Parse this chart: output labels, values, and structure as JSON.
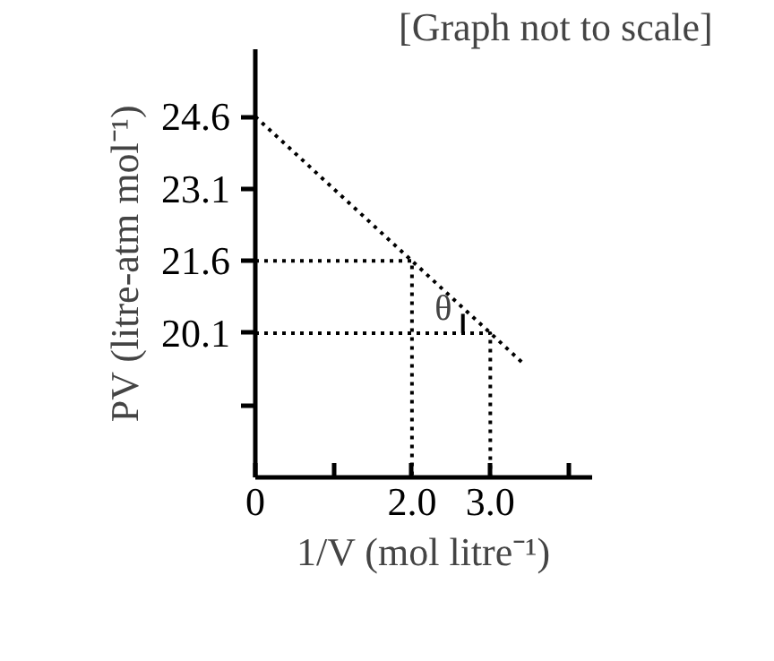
{
  "chart_data": {
    "type": "line",
    "xlabel": "1/V (mol litre⁻¹)",
    "ylabel": "PV (litre-atm mol⁻¹)",
    "annotations": [
      "[Graph not to scale]",
      "θ"
    ],
    "series": [
      {
        "color": "#000000",
        "line_style": "dotted",
        "x": [
          0,
          3.4
        ],
        "values": [
          24.6,
          19.5
        ]
      },
      {
        "color": "#000000",
        "line_style": "dotted",
        "x": [
          0,
          2,
          2
        ],
        "values": [
          21.6,
          21.6,
          17.1
        ]
      },
      {
        "color": "#000000",
        "line_style": "dotted",
        "x": [
          0,
          3,
          3
        ],
        "values": [
          20.1,
          20.1,
          17.1
        ]
      },
      {
        "color": "#000000",
        "line_style": "solid",
        "x": [
          2.65,
          2.65
        ],
        "values": [
          20.1,
          20.5
        ]
      }
    ],
    "xlim": [
      0,
      4.3
    ],
    "ylim": [
      17.1,
      26.0
    ],
    "xticks": [
      0,
      {
        "value": 1,
        "label": null
      },
      {
        "value": 2,
        "label": "2.0"
      },
      {
        "value": 3,
        "label": "3.0"
      },
      {
        "value": 4,
        "label": null
      }
    ],
    "yticks": [
      {
        "value": 18.6,
        "label": null
      },
      20.1,
      21.6,
      23.1,
      24.6
    ],
    "grid": false,
    "marker": "none"
  }
}
